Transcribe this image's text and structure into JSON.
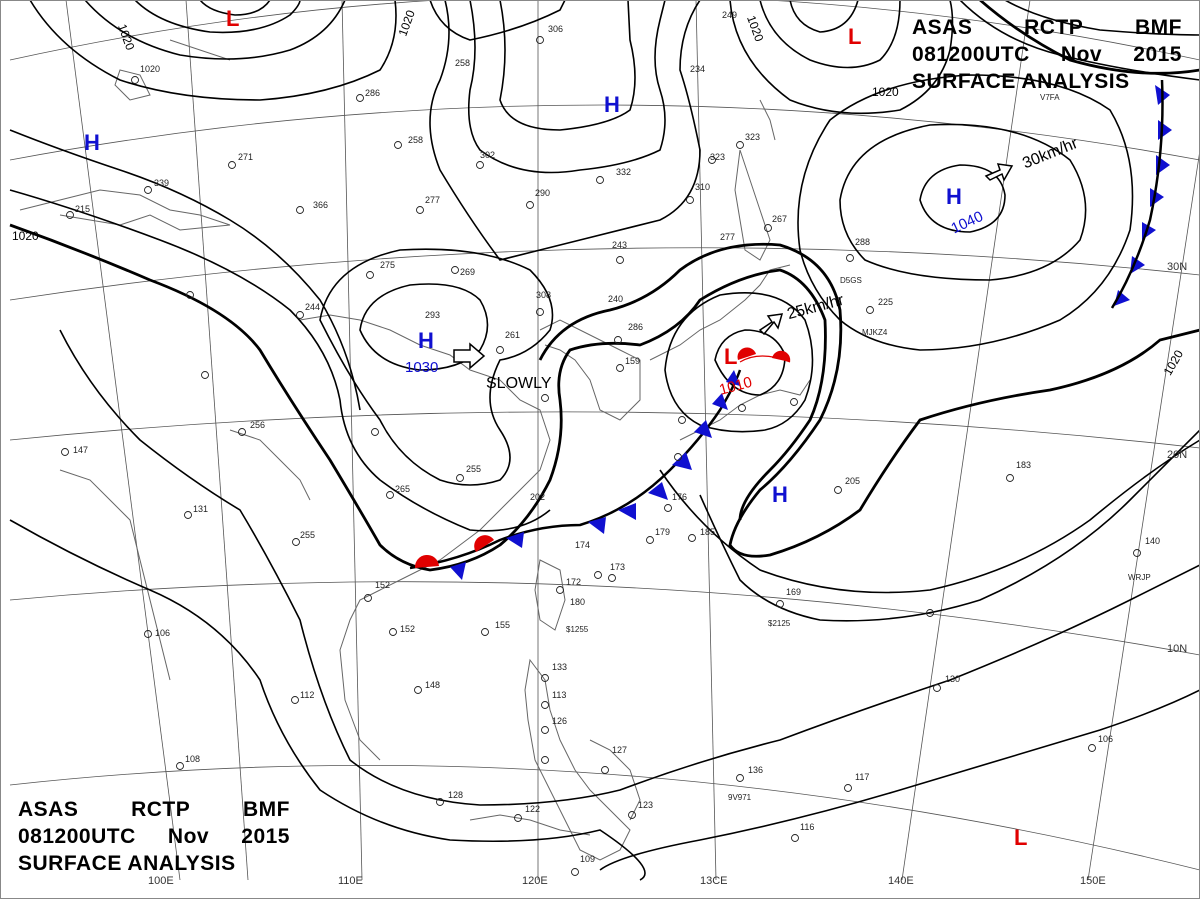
{
  "title": {
    "line1": [
      "ASAS",
      "RCTP",
      "BMF"
    ],
    "line2": [
      "081200UTC",
      "Nov",
      "2015"
    ],
    "line3": "SURFACE ANALYSIS"
  },
  "colors": {
    "high": "#1010d0",
    "low": "#e00000",
    "isobar": "#000000",
    "cold_front": "#1010d0",
    "warm_front": "#e00000",
    "graticule": "#444444",
    "coast": "#555555"
  },
  "longitude_labels": [
    "100E",
    "110E",
    "120E",
    "13CE",
    "140E",
    "150E"
  ],
  "latitude_labels": [
    "30N",
    "20N",
    "10N"
  ],
  "pressure_centers": [
    {
      "type": "H",
      "label": "H",
      "value": "1030",
      "motion": "SLOWLY"
    },
    {
      "type": "H",
      "label": "H",
      "value": "1040",
      "motion": "30km/hr"
    },
    {
      "type": "L",
      "label": "L",
      "value": "1010",
      "motion": "25km/hr"
    },
    {
      "type": "H",
      "label": "H",
      "value": "",
      "motion": ""
    },
    {
      "type": "H",
      "label": "H",
      "value": "",
      "motion": ""
    },
    {
      "type": "H",
      "label": "H",
      "value": "",
      "motion": ""
    },
    {
      "type": "L",
      "label": "L",
      "value": "",
      "motion": ""
    },
    {
      "type": "L",
      "label": "L",
      "value": "",
      "motion": ""
    },
    {
      "type": "L",
      "label": "L",
      "value": "",
      "motion": ""
    }
  ],
  "isobar_labels": [
    "1020",
    "1020",
    "1020",
    "1020",
    "1020",
    "1020"
  ],
  "station_codes": [
    "V7FA",
    "D5GS",
    "MJKZ4",
    "WRJP",
    "9V971",
    "$2125",
    "$1255"
  ]
}
